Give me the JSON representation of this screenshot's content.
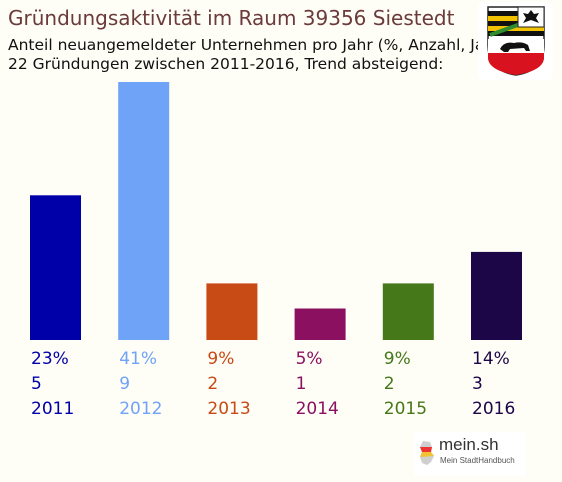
{
  "header": {
    "title": "Gründungsaktivität im Raum 39356 Siestedt",
    "subtitle_line1": "Anteil neuangemeldeter Unternehmen pro Jahr (%, Anzahl, Jahr)",
    "subtitle_line2": "22 Gründungen zwischen 2011-2016, Trend absteigend:"
  },
  "brand": {
    "name": "mein.sh",
    "tagline": "Mein StadtHandbuch"
  },
  "chart_data": {
    "type": "bar",
    "categories": [
      "2011",
      "2012",
      "2013",
      "2014",
      "2015",
      "2016"
    ],
    "percent_labels": [
      "23%",
      "41%",
      "9%",
      "5%",
      "9%",
      "14%"
    ],
    "values": [
      23,
      41,
      9,
      5,
      9,
      14
    ],
    "counts": [
      "5",
      "9",
      "2",
      "1",
      "2",
      "3"
    ],
    "colors": [
      "#0000a8",
      "#6fa3f7",
      "#c84a14",
      "#8c1060",
      "#447818",
      "#1c0648"
    ]
  }
}
